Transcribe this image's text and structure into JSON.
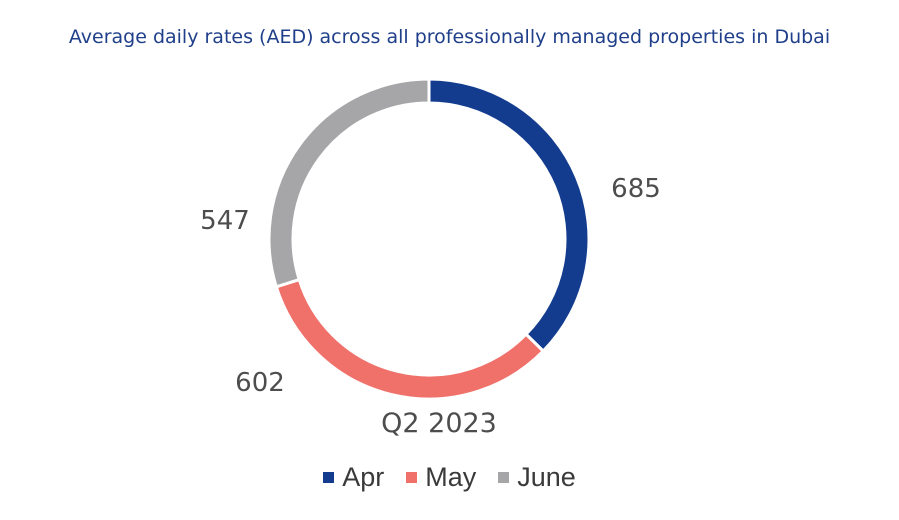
{
  "chart_data": {
    "type": "pie",
    "title": "Average daily rates (AED) across all professionally managed properties in Dubai",
    "category_label": "Q2 2023",
    "categories": [
      "Apr",
      "May",
      "June"
    ],
    "values": [
      685,
      602,
      547
    ],
    "data_labels": [
      "685",
      "602",
      "547"
    ],
    "colors": [
      "#133c8f",
      "#f0706a",
      "#a6a5a8"
    ],
    "donut": true,
    "legend_position": "bottom"
  }
}
